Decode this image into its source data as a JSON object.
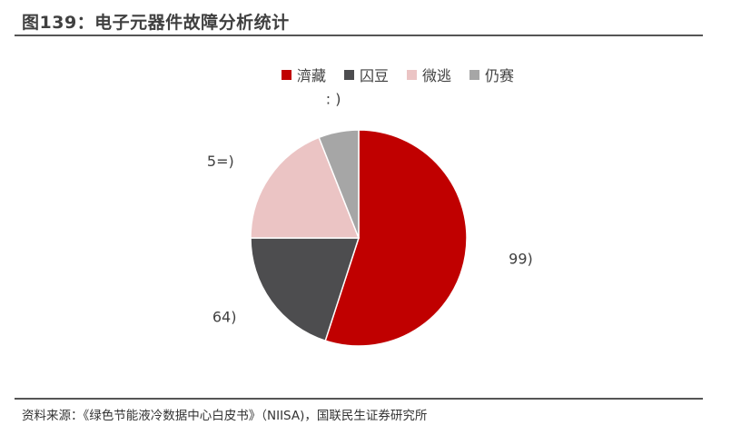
{
  "title": "图139：电子元器件故障分析统计",
  "source": "资料来源：《绿色节能液冷数据中心白皮书》（NIISA)，国联民生证券研究所",
  "chart_data": {
    "type": "pie",
    "title": "",
    "legend_position": "top",
    "slices": [
      {
        "name": "濟藏",
        "value": 55,
        "label": "99)",
        "color": "#C00000"
      },
      {
        "name": "囚豆",
        "value": 20,
        "label": "64)",
        "color": "#4D4D4F"
      },
      {
        "name": "微逃",
        "value": 19,
        "label": "5=)",
        "color": "#EBC4C4"
      },
      {
        "name": "仍赛",
        "value": 6,
        "label": ": )",
        "color": "#A6A6A6"
      }
    ]
  }
}
